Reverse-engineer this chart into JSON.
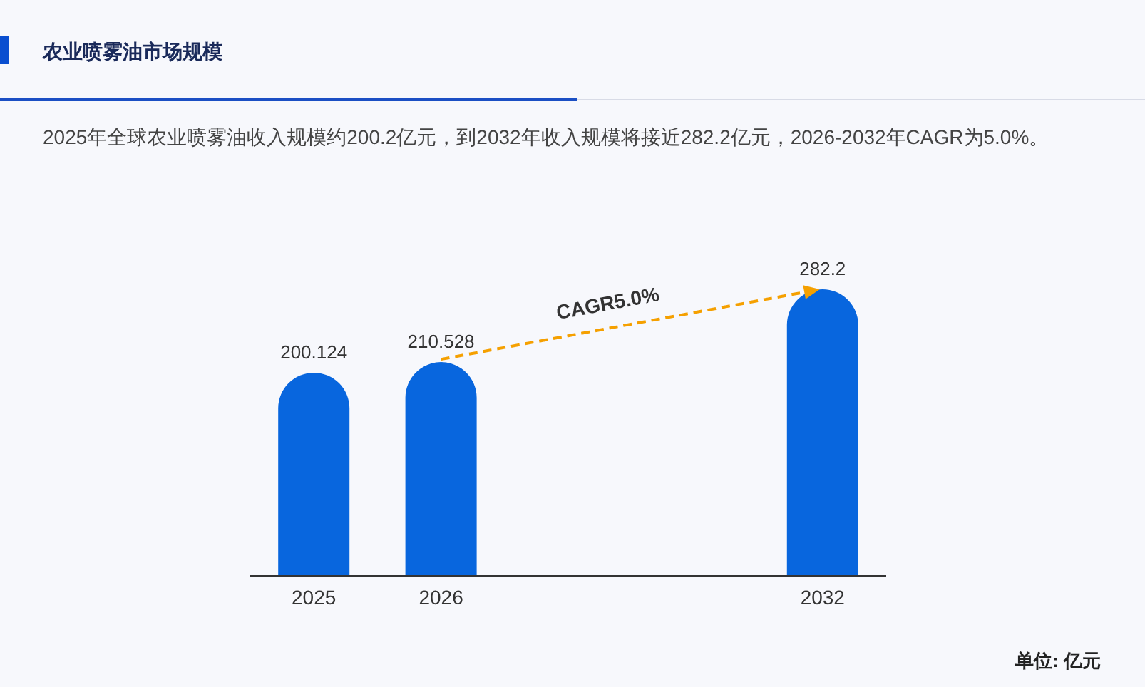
{
  "chart_data": {
    "type": "bar",
    "title": "农业喷雾油市场规模",
    "subtitle": "2025年全球农业喷雾油收入规模约200.2亿元，到2032年收入规模将接近282.2亿元，2026-2032年CAGR为5.0%。",
    "categories": [
      "2025",
      "2026",
      null,
      null,
      "2032"
    ],
    "values": [
      200.124,
      210.528,
      null,
      null,
      282.2
    ],
    "color": "#0866de",
    "data_labels": true,
    "annotations": [
      "CAGR5.0%",
      "单位: 亿元"
    ]
  }
}
